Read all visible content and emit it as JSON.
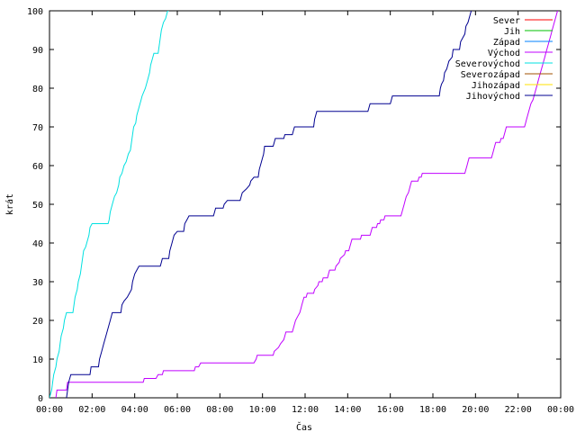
{
  "chart_data": {
    "type": "line",
    "xlabel": "Čas",
    "ylabel": "krát",
    "xlim": [
      0,
      24
    ],
    "ylim": [
      0,
      100
    ],
    "grid": false,
    "legend_position": "top-right",
    "x_ticks": [
      "00:00",
      "02:00",
      "04:00",
      "06:00",
      "08:00",
      "10:00",
      "12:00",
      "14:00",
      "16:00",
      "18:00",
      "20:00",
      "22:00",
      "00:00"
    ],
    "y_ticks": [
      "0",
      "10",
      "20",
      "30",
      "40",
      "50",
      "60",
      "70",
      "80",
      "90",
      "100"
    ],
    "series": [
      {
        "name": "Sever",
        "color": "#ff0000",
        "points": []
      },
      {
        "name": "Jih",
        "color": "#00c000",
        "points": []
      },
      {
        "name": "Západ",
        "color": "#0080ff",
        "points": []
      },
      {
        "name": "Východ",
        "color": "#c000ff",
        "points": [
          [
            0.3,
            0
          ],
          [
            0.35,
            2
          ],
          [
            0.8,
            2
          ],
          [
            0.85,
            4
          ],
          [
            4.4,
            4
          ],
          [
            4.45,
            5
          ],
          [
            5.0,
            5
          ],
          [
            5.1,
            6
          ],
          [
            5.3,
            6
          ],
          [
            5.35,
            7
          ],
          [
            6.8,
            7
          ],
          [
            6.85,
            8
          ],
          [
            7.0,
            8
          ],
          [
            7.1,
            9
          ],
          [
            9.6,
            9
          ],
          [
            9.7,
            10
          ],
          [
            9.75,
            11
          ],
          [
            10.5,
            11
          ],
          [
            10.55,
            12
          ],
          [
            10.75,
            13
          ],
          [
            10.85,
            14
          ],
          [
            11.0,
            15
          ],
          [
            11.05,
            16
          ],
          [
            11.1,
            17
          ],
          [
            11.4,
            17
          ],
          [
            11.45,
            18
          ],
          [
            11.5,
            19
          ],
          [
            11.55,
            20
          ],
          [
            11.65,
            21
          ],
          [
            11.75,
            22
          ],
          [
            11.8,
            23
          ],
          [
            11.85,
            24
          ],
          [
            11.9,
            25
          ],
          [
            11.95,
            26
          ],
          [
            12.05,
            26
          ],
          [
            12.1,
            27
          ],
          [
            12.4,
            27
          ],
          [
            12.45,
            28
          ],
          [
            12.6,
            29
          ],
          [
            12.65,
            30
          ],
          [
            12.8,
            30
          ],
          [
            12.85,
            31
          ],
          [
            13.05,
            31
          ],
          [
            13.1,
            32
          ],
          [
            13.15,
            33
          ],
          [
            13.4,
            33
          ],
          [
            13.45,
            34
          ],
          [
            13.6,
            35
          ],
          [
            13.65,
            36
          ],
          [
            13.85,
            37
          ],
          [
            13.9,
            38
          ],
          [
            14.05,
            38
          ],
          [
            14.1,
            39
          ],
          [
            14.15,
            40
          ],
          [
            14.2,
            41
          ],
          [
            14.6,
            41
          ],
          [
            14.65,
            42
          ],
          [
            15.05,
            42
          ],
          [
            15.1,
            43
          ],
          [
            15.15,
            44
          ],
          [
            15.35,
            44
          ],
          [
            15.4,
            45
          ],
          [
            15.5,
            45
          ],
          [
            15.55,
            46
          ],
          [
            15.7,
            46
          ],
          [
            15.75,
            47
          ],
          [
            16.5,
            47
          ],
          [
            16.55,
            48
          ],
          [
            16.6,
            49
          ],
          [
            16.65,
            50
          ],
          [
            16.7,
            51
          ],
          [
            16.75,
            52
          ],
          [
            16.85,
            53
          ],
          [
            16.9,
            54
          ],
          [
            16.95,
            55
          ],
          [
            17.0,
            56
          ],
          [
            17.3,
            56
          ],
          [
            17.35,
            57
          ],
          [
            17.45,
            57
          ],
          [
            17.5,
            58
          ],
          [
            19.5,
            58
          ],
          [
            19.55,
            59
          ],
          [
            19.6,
            60
          ],
          [
            19.65,
            61
          ],
          [
            19.7,
            62
          ],
          [
            20.75,
            62
          ],
          [
            20.8,
            63
          ],
          [
            20.85,
            64
          ],
          [
            20.9,
            65
          ],
          [
            20.95,
            66
          ],
          [
            21.15,
            66
          ],
          [
            21.2,
            67
          ],
          [
            21.3,
            67
          ],
          [
            21.35,
            68
          ],
          [
            21.4,
            69
          ],
          [
            21.45,
            70
          ],
          [
            22.3,
            70
          ],
          [
            22.35,
            71
          ],
          [
            22.4,
            72
          ],
          [
            22.45,
            73
          ],
          [
            22.5,
            74
          ],
          [
            22.55,
            75
          ],
          [
            22.6,
            76
          ],
          [
            22.7,
            77
          ],
          [
            22.75,
            78
          ],
          [
            22.8,
            79
          ],
          [
            22.85,
            80
          ],
          [
            22.9,
            81
          ],
          [
            22.95,
            82
          ],
          [
            23.0,
            83
          ],
          [
            23.05,
            84
          ],
          [
            23.1,
            85
          ],
          [
            23.15,
            86
          ],
          [
            23.2,
            87
          ],
          [
            23.25,
            88
          ],
          [
            23.3,
            89
          ],
          [
            23.35,
            90
          ],
          [
            23.4,
            91
          ],
          [
            23.45,
            92
          ],
          [
            23.5,
            93
          ],
          [
            23.55,
            94
          ],
          [
            23.6,
            95
          ],
          [
            23.65,
            96
          ],
          [
            23.7,
            97
          ],
          [
            23.75,
            98
          ],
          [
            23.8,
            99
          ],
          [
            23.85,
            100
          ]
        ]
      },
      {
        "name": "Severovýchod",
        "color": "#00e0e0",
        "points": [
          [
            0,
            0
          ],
          [
            0.1,
            2
          ],
          [
            0.15,
            4
          ],
          [
            0.2,
            6
          ],
          [
            0.3,
            8
          ],
          [
            0.35,
            10
          ],
          [
            0.45,
            12
          ],
          [
            0.5,
            14
          ],
          [
            0.55,
            16
          ],
          [
            0.65,
            18
          ],
          [
            0.7,
            20
          ],
          [
            0.8,
            22
          ],
          [
            1.1,
            22
          ],
          [
            1.15,
            24
          ],
          [
            1.2,
            26
          ],
          [
            1.3,
            28
          ],
          [
            1.35,
            30
          ],
          [
            1.45,
            32
          ],
          [
            1.5,
            34
          ],
          [
            1.55,
            36
          ],
          [
            1.6,
            38
          ],
          [
            1.7,
            39
          ],
          [
            1.75,
            40
          ],
          [
            1.85,
            42
          ],
          [
            1.9,
            44
          ],
          [
            2.0,
            45
          ],
          [
            2.75,
            45
          ],
          [
            2.8,
            46
          ],
          [
            2.85,
            48
          ],
          [
            2.95,
            50
          ],
          [
            3.05,
            52
          ],
          [
            3.15,
            53
          ],
          [
            3.25,
            55
          ],
          [
            3.3,
            57
          ],
          [
            3.4,
            58
          ],
          [
            3.5,
            60
          ],
          [
            3.6,
            61
          ],
          [
            3.7,
            63
          ],
          [
            3.8,
            64
          ],
          [
            3.85,
            66
          ],
          [
            3.9,
            68
          ],
          [
            3.95,
            70
          ],
          [
            4.05,
            71
          ],
          [
            4.1,
            73
          ],
          [
            4.2,
            75
          ],
          [
            4.3,
            77
          ],
          [
            4.35,
            78
          ],
          [
            4.5,
            80
          ],
          [
            4.6,
            82
          ],
          [
            4.7,
            84
          ],
          [
            4.75,
            86
          ],
          [
            4.85,
            88
          ],
          [
            4.9,
            89
          ],
          [
            5.1,
            89
          ],
          [
            5.15,
            91
          ],
          [
            5.2,
            93
          ],
          [
            5.25,
            95
          ],
          [
            5.35,
            97
          ],
          [
            5.45,
            98
          ],
          [
            5.55,
            100
          ],
          [
            5.6,
            100
          ]
        ]
      },
      {
        "name": "Severozápad",
        "color": "#a05000",
        "points": []
      },
      {
        "name": "Jihozápad",
        "color": "#ffe000",
        "points": []
      },
      {
        "name": "Jihovýchod",
        "color": "#000090",
        "points": [
          [
            0.8,
            0
          ],
          [
            0.9,
            4
          ],
          [
            1.0,
            6
          ],
          [
            1.9,
            6
          ],
          [
            1.95,
            8
          ],
          [
            2.3,
            8
          ],
          [
            2.35,
            10
          ],
          [
            2.45,
            12
          ],
          [
            2.55,
            14
          ],
          [
            2.65,
            16
          ],
          [
            2.75,
            18
          ],
          [
            2.85,
            20
          ],
          [
            2.95,
            22
          ],
          [
            3.35,
            22
          ],
          [
            3.4,
            24
          ],
          [
            3.5,
            25
          ],
          [
            3.65,
            26
          ],
          [
            3.75,
            27
          ],
          [
            3.85,
            28
          ],
          [
            3.9,
            30
          ],
          [
            4.0,
            32
          ],
          [
            4.1,
            33
          ],
          [
            4.2,
            34
          ],
          [
            5.2,
            34
          ],
          [
            5.25,
            35
          ],
          [
            5.3,
            36
          ],
          [
            5.6,
            36
          ],
          [
            5.65,
            38
          ],
          [
            5.75,
            40
          ],
          [
            5.85,
            42
          ],
          [
            6.0,
            43
          ],
          [
            6.3,
            43
          ],
          [
            6.35,
            45
          ],
          [
            6.45,
            46
          ],
          [
            6.55,
            47
          ],
          [
            7.7,
            47
          ],
          [
            7.75,
            48
          ],
          [
            7.8,
            49
          ],
          [
            8.15,
            49
          ],
          [
            8.2,
            50
          ],
          [
            8.35,
            51
          ],
          [
            8.95,
            51
          ],
          [
            9.0,
            52
          ],
          [
            9.05,
            53
          ],
          [
            9.25,
            54
          ],
          [
            9.4,
            55
          ],
          [
            9.45,
            56
          ],
          [
            9.6,
            57
          ],
          [
            9.8,
            57
          ],
          [
            9.85,
            59
          ],
          [
            9.95,
            61
          ],
          [
            10.05,
            63
          ],
          [
            10.1,
            65
          ],
          [
            10.5,
            65
          ],
          [
            10.55,
            66
          ],
          [
            10.6,
            67
          ],
          [
            11.0,
            67
          ],
          [
            11.05,
            68
          ],
          [
            11.4,
            68
          ],
          [
            11.45,
            69
          ],
          [
            11.5,
            70
          ],
          [
            12.4,
            70
          ],
          [
            12.45,
            72
          ],
          [
            12.5,
            73
          ],
          [
            12.55,
            74
          ],
          [
            14.95,
            74
          ],
          [
            15.0,
            75
          ],
          [
            15.05,
            76
          ],
          [
            16.0,
            76
          ],
          [
            16.05,
            77
          ],
          [
            16.1,
            78
          ],
          [
            18.3,
            78
          ],
          [
            18.35,
            80
          ],
          [
            18.4,
            81
          ],
          [
            18.5,
            82
          ],
          [
            18.55,
            84
          ],
          [
            18.65,
            85
          ],
          [
            18.75,
            87
          ],
          [
            18.9,
            88
          ],
          [
            18.95,
            90
          ],
          [
            19.25,
            90
          ],
          [
            19.3,
            92
          ],
          [
            19.4,
            93
          ],
          [
            19.5,
            94
          ],
          [
            19.55,
            96
          ],
          [
            19.65,
            97
          ],
          [
            19.75,
            99
          ],
          [
            19.8,
            100
          ]
        ]
      }
    ]
  }
}
